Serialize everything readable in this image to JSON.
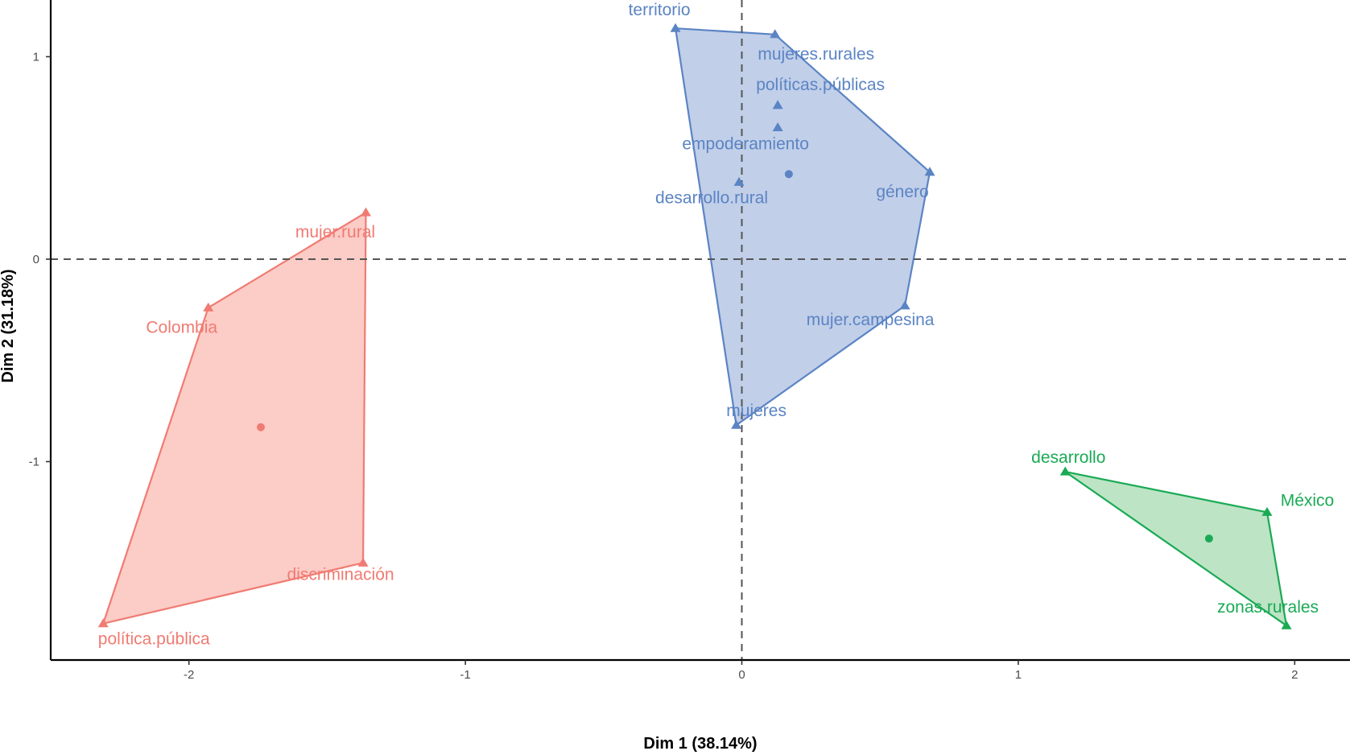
{
  "chart_data": {
    "type": "scatter",
    "xlabel": "Dim 1 (38.14%)",
    "ylabel": "Dim 2 (31.18%)",
    "xlim": [
      -2.5,
      2.2
    ],
    "ylim": [
      -1.98,
      1.28
    ],
    "x_ticks": [
      -2,
      -1,
      0,
      1,
      2
    ],
    "y_ticks": [
      -1,
      0,
      1
    ],
    "x_tick_labels": [
      "-2",
      "-1",
      "0",
      "1",
      "2"
    ],
    "y_tick_labels": [
      "-1",
      "0",
      "1"
    ],
    "reference_lines": {
      "x": 0,
      "y": 0,
      "style": "dashed"
    },
    "grid": false,
    "legend": "none",
    "clusters": [
      {
        "color": "#f07b72",
        "fill": "#fbb9b2",
        "centroid": {
          "x": -1.74,
          "y": -0.83
        },
        "points": [
          {
            "label": "mujer.rural",
            "x": -1.36,
            "y": 0.23
          },
          {
            "label": "Colombia",
            "x": -1.93,
            "y": -0.24
          },
          {
            "label": "discriminación",
            "x": -1.37,
            "y": -1.5
          },
          {
            "label": "política.pública",
            "x": -2.31,
            "y": -1.8
          }
        ],
        "hull": [
          "mujer.rural",
          "discriminación",
          "política.pública",
          "Colombia"
        ]
      },
      {
        "color": "#5b84c4",
        "fill": "#a9bce0",
        "centroid": {
          "x": 0.17,
          "y": 0.42
        },
        "points": [
          {
            "label": "territorio",
            "x": -0.24,
            "y": 1.14
          },
          {
            "label": "mujeres.rurales",
            "x": 0.12,
            "y": 1.11
          },
          {
            "label": "políticas.públicas",
            "x": 0.13,
            "y": 0.76
          },
          {
            "label": "empoderamiento",
            "x": 0.13,
            "y": 0.65
          },
          {
            "label": "desarrollo.rural",
            "x": -0.01,
            "y": 0.38
          },
          {
            "label": "género",
            "x": 0.68,
            "y": 0.43
          },
          {
            "label": "mujer.campesina",
            "x": 0.59,
            "y": -0.23
          },
          {
            "label": "mujeres",
            "x": -0.02,
            "y": -0.82
          }
        ],
        "hull": [
          "territorio",
          "mujeres.rurales",
          "género",
          "mujer.campesina",
          "mujeres"
        ]
      },
      {
        "color": "#1aaa55",
        "fill": "#a4d9ae",
        "centroid": {
          "x": 1.69,
          "y": -1.38
        },
        "points": [
          {
            "label": "desarrollo",
            "x": 1.17,
            "y": -1.05
          },
          {
            "label": "México",
            "x": 1.9,
            "y": -1.25
          },
          {
            "label": "zonas.rurales",
            "x": 1.97,
            "y": -1.81
          }
        ],
        "hull": [
          "desarrollo",
          "México",
          "zonas.rurales"
        ]
      }
    ]
  }
}
